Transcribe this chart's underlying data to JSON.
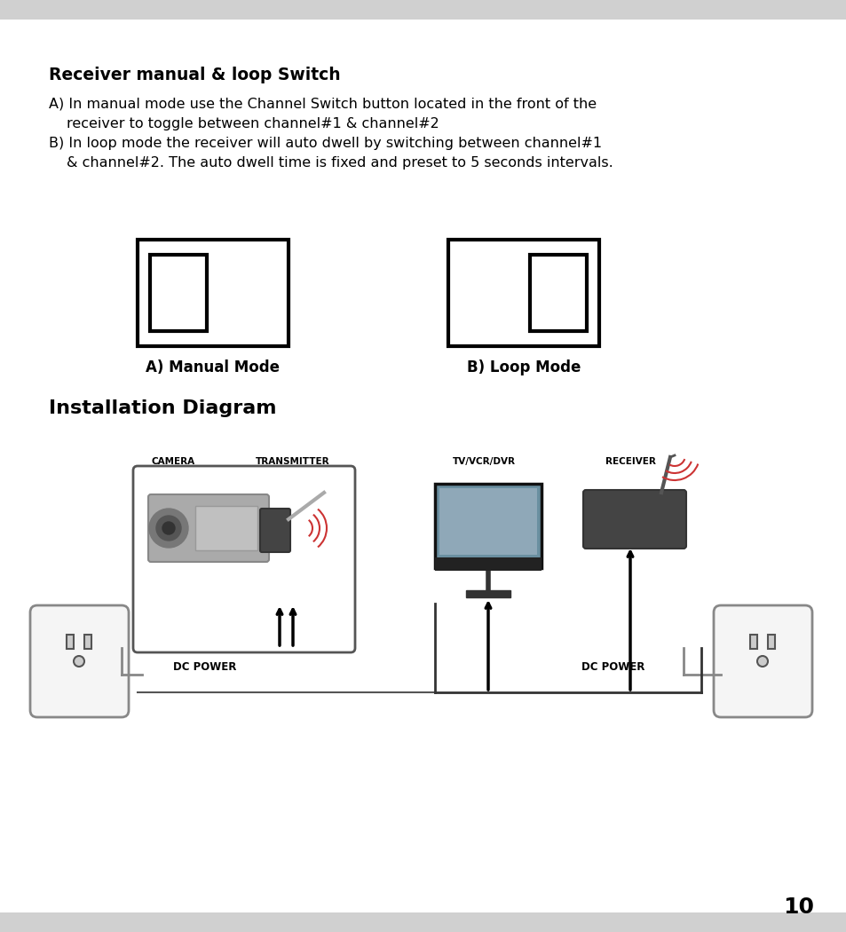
{
  "bg_color": "#e8e8e8",
  "page_bg": "#ffffff",
  "header_bar_color": "#d0d0d0",
  "title1": "Receiver manual & loop Switch",
  "line_A": "A) In manual mode use the Channel Switch button located in the front of the",
  "line_A2": "receiver to toggle between channel#1 & channel#2",
  "line_B": "B) In loop mode the receiver will auto dwell by switching between channel#1",
  "line_B2": "& channel#2. The auto dwell time is fixed and preset to 5 seconds intervals.",
  "label_manual": "A) Manual Mode",
  "label_loop": "B) Loop Mode",
  "title2": "Installation Diagram",
  "label_camera": "CAMERA",
  "label_transmitter": "TRANSMITTER",
  "label_tv": "TV/VCR/DVR",
  "label_receiver": "RECEIVER",
  "label_dc1": "DC POWER",
  "label_dc2": "DC POWER",
  "page_number": "10",
  "text_color": "#000000",
  "dark_gray": "#333333",
  "medium_gray": "#666666"
}
